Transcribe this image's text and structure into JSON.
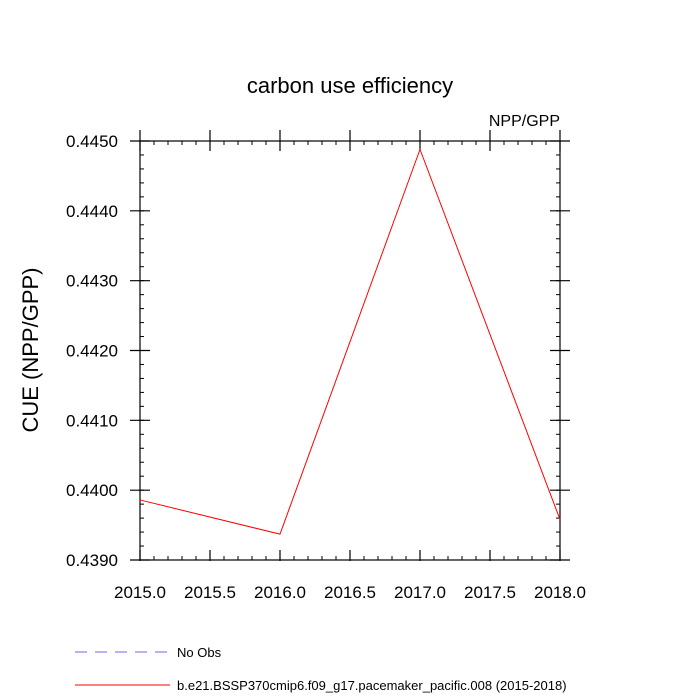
{
  "chart_data": {
    "type": "line",
    "title": "carbon use efficiency",
    "subtitle": "NPP/GPP",
    "ylabel": "CUE  (NPP/GPP)",
    "xlabel": "",
    "xlim": [
      2015.0,
      2018.0
    ],
    "ylim": [
      0.439,
      0.445
    ],
    "x_ticks": [
      "2015.0",
      "2015.5",
      "2016.0",
      "2016.5",
      "2017.0",
      "2017.5",
      "2018.0"
    ],
    "y_ticks": [
      "0.4390",
      "0.4400",
      "0.4410",
      "0.4420",
      "0.4430",
      "0.4440",
      "0.4450"
    ],
    "x_tick_values": [
      2015.0,
      2015.5,
      2016.0,
      2016.5,
      2017.0,
      2017.5,
      2018.0
    ],
    "y_tick_values": [
      0.439,
      0.44,
      0.441,
      0.442,
      0.443,
      0.444,
      0.445
    ],
    "grid": false,
    "legend_position": "bottom",
    "series": [
      {
        "name": "b.e21.BSSP370cmip6.f09_g17.pacemaker_pacific.008 (2015-2018)",
        "color": "#ff0000",
        "dash": "solid",
        "x": [
          2015.0,
          2016.0,
          2017.0,
          2018.0
        ],
        "y": [
          0.43986,
          0.43937,
          0.44488,
          0.43958
        ]
      }
    ],
    "legend": [
      {
        "label": "No Obs",
        "color": "#6a6aee",
        "dash": "dashed"
      },
      {
        "label": "b.e21.BSSP370cmip6.f09_g17.pacemaker_pacific.008 (2015-2018)",
        "color": "#ff0000",
        "dash": "solid"
      }
    ]
  }
}
